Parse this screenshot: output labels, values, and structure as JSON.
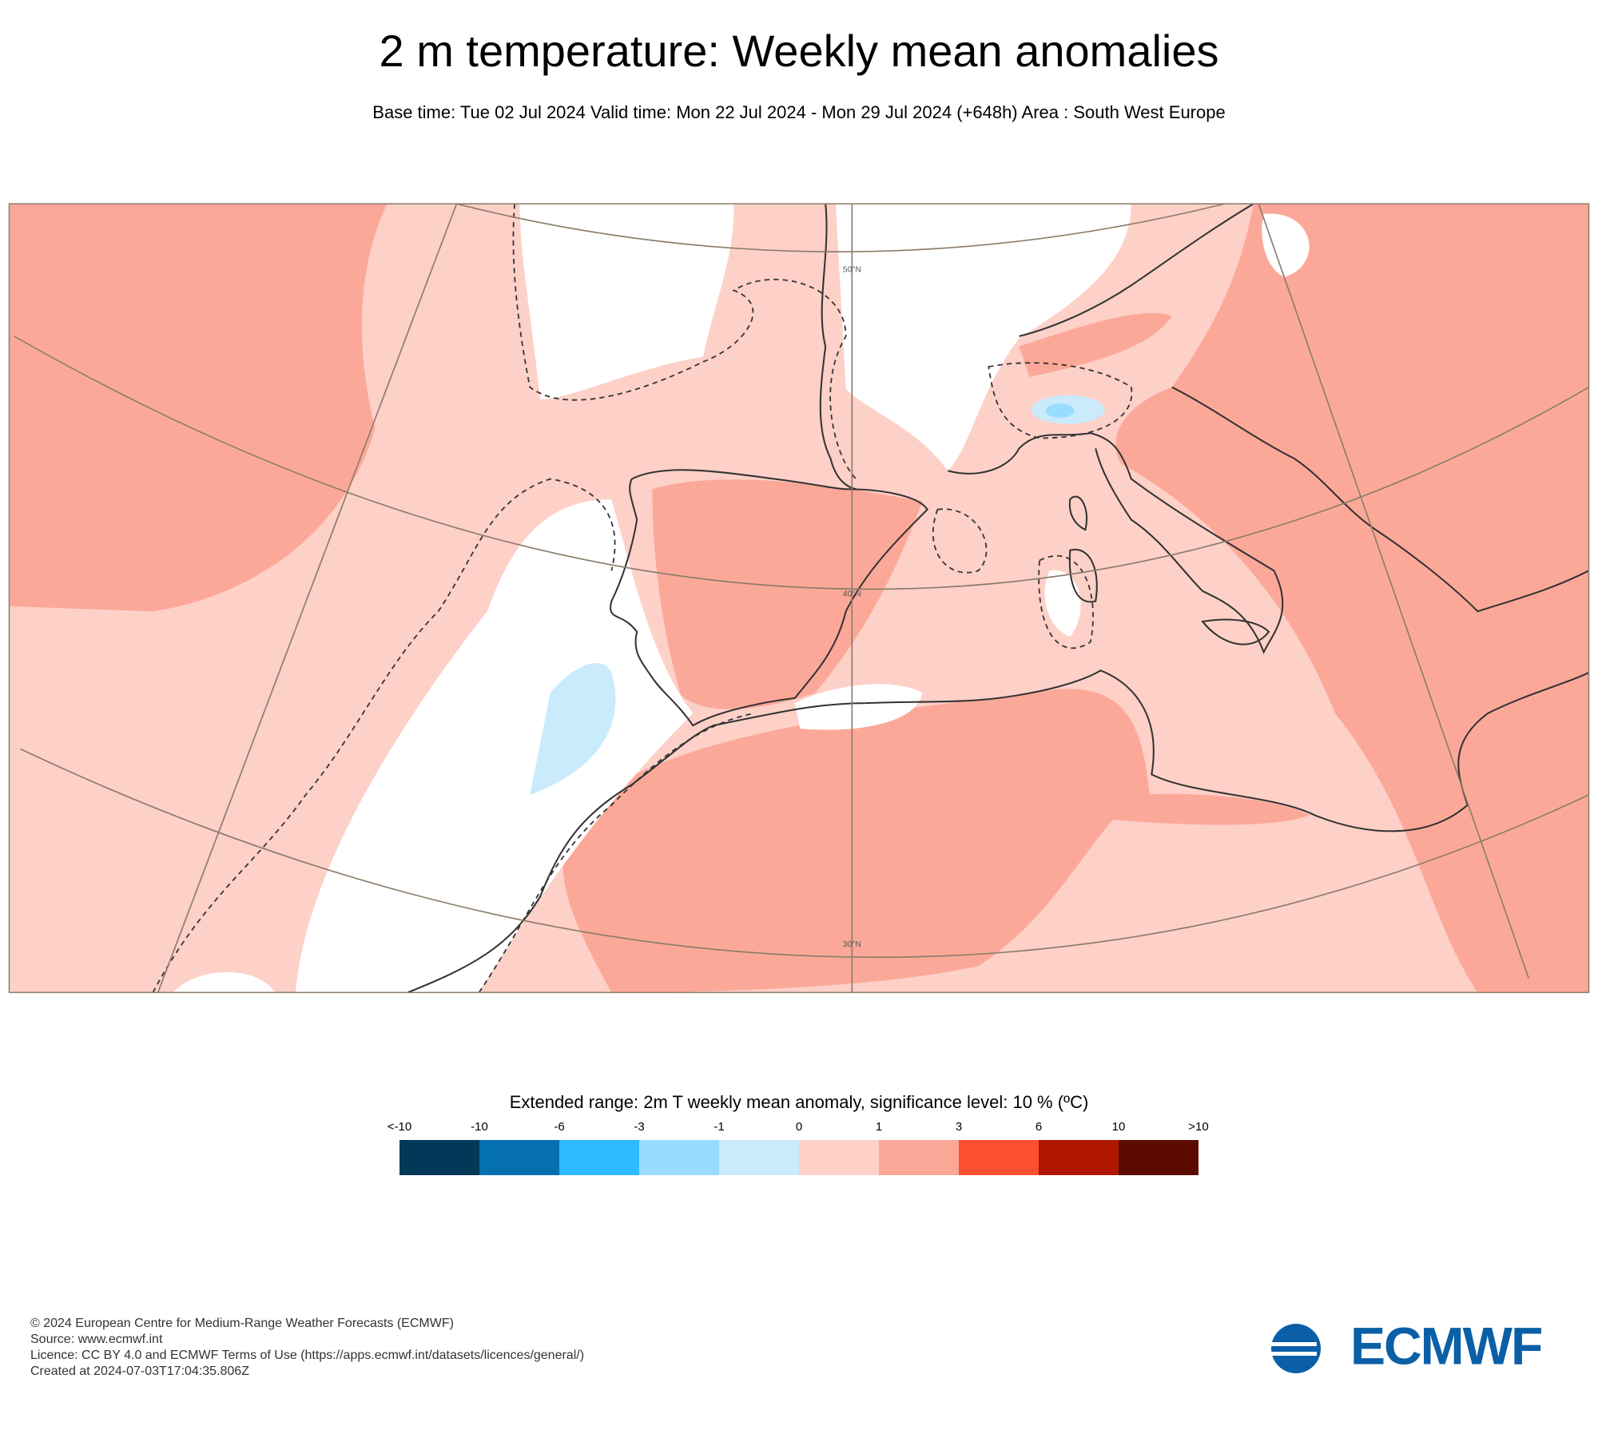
{
  "header": {
    "title": "2 m temperature: Weekly mean anomalies",
    "subtitle": "Base time: Tue 02 Jul 2024 Valid time: Mon 22 Jul 2024 - Mon 29 Jul 2024 (+648h) Area : South West Europe"
  },
  "map": {
    "latitude_labels": [
      "50°N",
      "40°N",
      "30°N"
    ]
  },
  "legend": {
    "title": "Extended range: 2m T weekly mean anomaly, significance level: 10 % (ºC)",
    "labels": [
      "<-10",
      "-10",
      "-6",
      "-3",
      "-1",
      "0",
      "1",
      "3",
      "6",
      "10",
      ">10"
    ],
    "colors": [
      "#023858",
      "#0570b0",
      "#2fb9ff",
      "#99dcff",
      "#caebfc",
      "#fdd0c8",
      "#fca898",
      "#fc4f31",
      "#ae1600",
      "#5b0a00"
    ]
  },
  "footer": {
    "lines": [
      "© 2024 European Centre for Medium-Range Weather Forecasts (ECMWF)",
      "Source: www.ecmwf.int",
      "Licence: CC BY 4.0 and ECMWF Terms of Use (https://apps.ecmwf.int/datasets/licences/general/)",
      "Created at 2024-07-03T17:04:35.806Z"
    ],
    "logo": "ECMWF"
  }
}
